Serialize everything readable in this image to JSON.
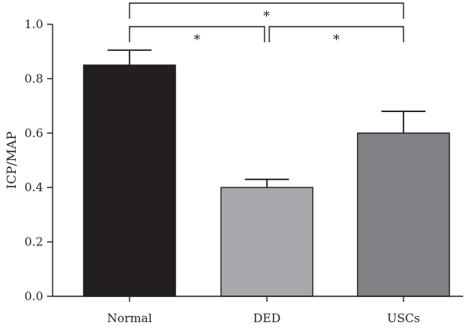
{
  "chart_data": {
    "type": "bar",
    "title": "",
    "xlabel": "",
    "ylabel": "ICP/MAP",
    "ylim": [
      0,
      1.0
    ],
    "yticks": [
      "0.0",
      "0.2",
      "0.4",
      "0.6",
      "0.8",
      "1.0"
    ],
    "categories": [
      "Normal",
      "DED",
      "USCs"
    ],
    "values": [
      0.85,
      0.4,
      0.6
    ],
    "errors": [
      0.055,
      0.03,
      0.08
    ],
    "colors": [
      "#231f20",
      "#a7a9ac",
      "#808285"
    ],
    "significance": [
      {
        "from": "Normal",
        "to": "DED",
        "label": "*"
      },
      {
        "from": "DED",
        "to": "USCs",
        "label": "*"
      },
      {
        "from": "Normal",
        "to": "USCs",
        "label": "*"
      }
    ],
    "grid": false
  }
}
